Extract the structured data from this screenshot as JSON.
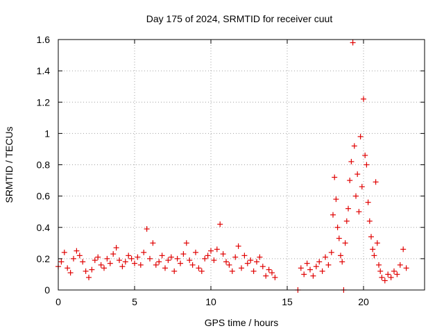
{
  "chart_data": {
    "type": "scatter",
    "title": "Day 175 of 2024, SRMTID for receiver cuut",
    "xlabel": "GPS time / hours",
    "ylabel": "SRMTID / TECUs",
    "xlim": [
      0,
      24
    ],
    "ylim": [
      0,
      1.6
    ],
    "xticks": [
      0,
      5,
      10,
      15,
      20
    ],
    "xtick_labels": [
      "0",
      "5",
      "10",
      "15",
      "20"
    ],
    "yticks": [
      0,
      0.2,
      0.4,
      0.6,
      0.8,
      1.0,
      1.2,
      1.4,
      1.6
    ],
    "ytick_labels": [
      "0",
      "0.2",
      "0.4",
      "0.6",
      "0.8",
      "1",
      "1.2",
      "1.4",
      "1.6"
    ],
    "grid": true,
    "marker": "+",
    "color": "#e00000",
    "series": [
      {
        "name": "SRMTID",
        "x": [
          0.0,
          0.2,
          0.4,
          0.6,
          0.8,
          1.0,
          1.2,
          1.4,
          1.6,
          1.8,
          2.0,
          2.2,
          2.4,
          2.6,
          2.8,
          3.0,
          3.2,
          3.4,
          3.6,
          3.8,
          4.0,
          4.2,
          4.4,
          4.6,
          4.8,
          5.0,
          5.2,
          5.4,
          5.6,
          5.8,
          6.0,
          6.2,
          6.4,
          6.6,
          6.8,
          7.0,
          7.2,
          7.4,
          7.6,
          7.8,
          8.0,
          8.2,
          8.4,
          8.6,
          8.8,
          9.0,
          9.2,
          9.4,
          9.6,
          9.8,
          10.0,
          10.2,
          10.4,
          10.6,
          10.8,
          11.0,
          11.2,
          11.4,
          11.6,
          11.8,
          12.0,
          12.2,
          12.4,
          12.6,
          12.8,
          13.0,
          13.2,
          13.4,
          13.6,
          13.8,
          14.0,
          14.2,
          15.7,
          15.9,
          16.1,
          16.3,
          16.5,
          16.7,
          16.9,
          17.1,
          17.3,
          17.5,
          17.7,
          17.9,
          18.0,
          18.1,
          18.2,
          18.3,
          18.4,
          18.5,
          18.6,
          18.7,
          18.8,
          18.9,
          19.0,
          19.1,
          19.2,
          19.3,
          19.4,
          19.5,
          19.6,
          19.7,
          19.8,
          19.9,
          20.0,
          20.1,
          20.2,
          20.3,
          20.4,
          20.5,
          20.6,
          20.7,
          20.8,
          20.9,
          21.0,
          21.1,
          21.2,
          21.4,
          21.6,
          21.8,
          22.0,
          22.2,
          22.4,
          22.6,
          22.8
        ],
        "y": [
          0.15,
          0.18,
          0.24,
          0.14,
          0.11,
          0.2,
          0.25,
          0.22,
          0.18,
          0.12,
          0.08,
          0.13,
          0.19,
          0.21,
          0.16,
          0.14,
          0.2,
          0.17,
          0.23,
          0.27,
          0.19,
          0.15,
          0.18,
          0.22,
          0.2,
          0.17,
          0.21,
          0.16,
          0.24,
          0.39,
          0.2,
          0.3,
          0.16,
          0.18,
          0.22,
          0.14,
          0.19,
          0.21,
          0.12,
          0.2,
          0.17,
          0.23,
          0.3,
          0.19,
          0.16,
          0.24,
          0.14,
          0.12,
          0.2,
          0.22,
          0.25,
          0.19,
          0.26,
          0.42,
          0.23,
          0.18,
          0.16,
          0.12,
          0.21,
          0.28,
          0.14,
          0.22,
          0.17,
          0.19,
          0.12,
          0.18,
          0.21,
          0.15,
          0.09,
          0.13,
          0.11,
          0.08,
          0.0,
          0.14,
          0.1,
          0.17,
          0.13,
          0.09,
          0.15,
          0.18,
          0.12,
          0.21,
          0.16,
          0.24,
          0.48,
          0.72,
          0.58,
          0.4,
          0.33,
          0.22,
          0.18,
          0.0,
          0.3,
          0.44,
          0.52,
          0.7,
          0.82,
          1.58,
          0.92,
          0.6,
          0.74,
          0.5,
          0.98,
          0.66,
          1.22,
          0.86,
          0.8,
          0.56,
          0.44,
          0.34,
          0.26,
          0.22,
          0.69,
          0.3,
          0.16,
          0.12,
          0.08,
          0.06,
          0.1,
          0.08,
          0.12,
          0.1,
          0.16,
          0.26,
          0.14
        ]
      }
    ]
  }
}
